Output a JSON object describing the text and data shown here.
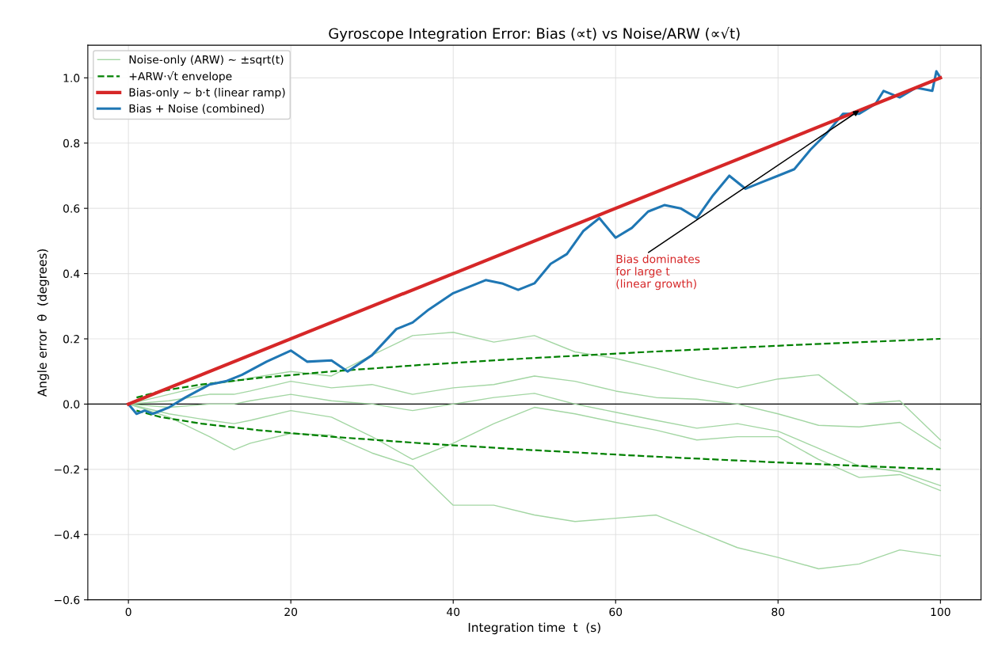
{
  "chart_data": {
    "type": "line",
    "title": "Gyroscope Integration Error: Bias (∝t) vs Noise/ARW (∝√t)",
    "xlabel": "Integration time  t  (s)",
    "ylabel": "Angle error  θ  (degrees)",
    "xlim": [
      -5,
      105
    ],
    "xticks": [
      0,
      20,
      40,
      60,
      80,
      100
    ],
    "ylim": [
      -0.6,
      1.1
    ],
    "yticks": [
      {
        "value": -0.6,
        "label": "−0.6"
      },
      {
        "value": -0.4,
        "label": "−0.4"
      },
      {
        "value": -0.2,
        "label": "−0.2"
      },
      {
        "value": 0,
        "label": "0.0"
      },
      {
        "value": 0.2,
        "label": "0.2"
      },
      {
        "value": 0.4,
        "label": "0.4"
      },
      {
        "value": 0.6,
        "label": "0.6"
      },
      {
        "value": 0.8,
        "label": "0.8"
      },
      {
        "value": 1.0,
        "label": "1.0"
      }
    ],
    "grid": true,
    "legend": "top left",
    "line_style": "solid",
    "marker": "none",
    "ref_lines": [
      {
        "axis": "y",
        "value": 0,
        "color": "#000000"
      }
    ],
    "annotations": [
      {
        "text": "Bias dominates\nfor large t\n(linear growth)",
        "x": 90,
        "y": 0.9
      }
    ],
    "series": [
      {
        "name": "Noise-only (ARW) ~ ±sqrt(t)",
        "color": "#a3d6a3",
        "x": [
          0,
          5,
          10,
          13,
          15,
          20,
          25,
          30,
          35,
          40,
          45,
          50,
          55,
          60,
          65,
          70,
          75,
          80,
          85,
          90,
          95,
          100
        ],
        "values": [
          0,
          0.03,
          0.06,
          0.07,
          0.08,
          0.1,
          0.086,
          0.15,
          0.21,
          0.22,
          0.19,
          0.21,
          0.16,
          0.14,
          0.11,
          0.077,
          0.05,
          0.077,
          0.09,
          0.0,
          0.01,
          -0.11
        ]
      },
      {
        "color": "#a3d6a3",
        "x": [
          0,
          5,
          10,
          13,
          15,
          20,
          25,
          30,
          35,
          40,
          45,
          50,
          55,
          60,
          65,
          70,
          75,
          80,
          85,
          90,
          95,
          100
        ],
        "values": [
          0,
          0.01,
          0.03,
          0.03,
          0.04,
          0.07,
          0.05,
          0.06,
          0.03,
          0.05,
          0.06,
          0.086,
          0.07,
          0.04,
          0.02,
          0.015,
          0.0,
          -0.03,
          -0.065,
          -0.07,
          -0.056,
          -0.136
        ]
      },
      {
        "color": "#a3d6a3",
        "x": [
          0,
          5,
          10,
          13,
          15,
          20,
          25,
          30,
          35,
          40,
          45,
          50,
          55,
          60,
          65,
          70,
          75,
          80,
          85,
          90,
          95,
          100
        ],
        "values": [
          0,
          -0.01,
          0.0,
          0.0,
          0.01,
          0.03,
          0.01,
          0.0,
          -0.02,
          0.0,
          0.02,
          0.033,
          0.0,
          -0.025,
          -0.05,
          -0.074,
          -0.06,
          -0.083,
          -0.136,
          -0.19,
          -0.207,
          -0.25
        ]
      },
      {
        "color": "#a3d6a3",
        "x": [
          0,
          5,
          10,
          13,
          15,
          20,
          25,
          30,
          35,
          40,
          45,
          50,
          55,
          60,
          65,
          70,
          75,
          80,
          85,
          90,
          95,
          100
        ],
        "values": [
          0,
          -0.03,
          -0.05,
          -0.06,
          -0.05,
          -0.02,
          -0.04,
          -0.1,
          -0.17,
          -0.12,
          -0.06,
          -0.01,
          -0.03,
          -0.056,
          -0.08,
          -0.11,
          -0.1,
          -0.1,
          -0.17,
          -0.225,
          -0.216,
          -0.265
        ]
      },
      {
        "color": "#a3d6a3",
        "x": [
          0,
          5,
          10,
          13,
          15,
          20,
          25,
          30,
          35,
          40,
          45,
          50,
          55,
          60,
          65,
          70,
          75,
          80,
          85,
          90,
          95,
          100
        ],
        "values": [
          0,
          -0.04,
          -0.1,
          -0.14,
          -0.12,
          -0.09,
          -0.095,
          -0.15,
          -0.19,
          -0.31,
          -0.31,
          -0.34,
          -0.36,
          -0.35,
          -0.34,
          -0.39,
          -0.44,
          -0.47,
          -0.505,
          -0.49,
          -0.447,
          -0.465
        ]
      },
      {
        "name": "+ARW·√t envelope",
        "color": "#008000",
        "line_style": "dashed",
        "x": [
          1,
          4,
          9,
          16,
          25,
          36,
          49,
          64,
          81,
          100
        ],
        "values": [
          0.02,
          0.04,
          0.06,
          0.08,
          0.1,
          0.12,
          0.14,
          0.16,
          0.18,
          0.2
        ]
      },
      {
        "color": "#008000",
        "line_style": "dashed",
        "x": [
          1,
          4,
          9,
          16,
          25,
          36,
          49,
          64,
          81,
          100
        ],
        "values": [
          -0.02,
          -0.04,
          -0.06,
          -0.08,
          -0.1,
          -0.12,
          -0.14,
          -0.16,
          -0.18,
          -0.2
        ]
      },
      {
        "name": "Bias-only ~ b·t (linear ramp)",
        "color": "#d62728",
        "x": [
          0,
          100
        ],
        "values": [
          0,
          1.0
        ]
      },
      {
        "name": "Bias + Noise (combined)",
        "color": "#1f77b4",
        "x": [
          0,
          1,
          2,
          3,
          5,
          7,
          10,
          12,
          14,
          17,
          20,
          22,
          25,
          27,
          30,
          33,
          35,
          37,
          40,
          42,
          44,
          46,
          48,
          50,
          52,
          54,
          56,
          58,
          60,
          62,
          64,
          66,
          68,
          70,
          72,
          74,
          76,
          78,
          80,
          82,
          84,
          86,
          88,
          90,
          92,
          93,
          95,
          97,
          99,
          99.5,
          100
        ],
        "values": [
          0,
          -0.03,
          -0.02,
          -0.03,
          -0.01,
          0.02,
          0.06,
          0.07,
          0.09,
          0.13,
          0.164,
          0.13,
          0.134,
          0.1,
          0.15,
          0.23,
          0.25,
          0.29,
          0.34,
          0.36,
          0.38,
          0.37,
          0.35,
          0.37,
          0.43,
          0.46,
          0.53,
          0.57,
          0.51,
          0.54,
          0.59,
          0.61,
          0.6,
          0.57,
          0.64,
          0.7,
          0.66,
          0.68,
          0.7,
          0.72,
          0.78,
          0.83,
          0.89,
          0.89,
          0.92,
          0.96,
          0.94,
          0.97,
          0.96,
          1.02,
          1.0
        ]
      }
    ]
  }
}
